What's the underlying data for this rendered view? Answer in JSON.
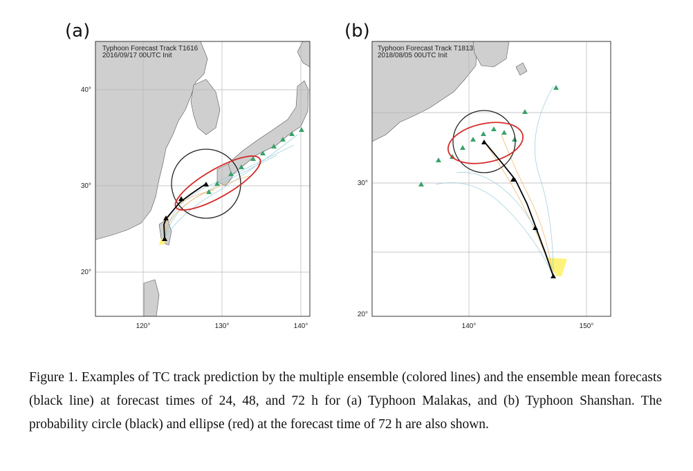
{
  "figure": {
    "panels": [
      {
        "label": "(a)",
        "title_line1": "Typhoon Forecast Track T1616",
        "title_line2": "2016/09/17 00UTC Init",
        "lon_ticks": [
          "120°",
          "130°",
          "140°"
        ],
        "lat_ticks": [
          "40°",
          "30°",
          "20°"
        ]
      },
      {
        "label": "(b)",
        "title_line1": "Typhoon Forecast Track T1813",
        "title_line2": "2018/08/05 00UTC Init",
        "lon_ticks": [
          "140°",
          "150°"
        ],
        "lat_ticks": [
          "30°",
          "20°"
        ]
      }
    ],
    "caption": "Figure 1. Examples of TC track prediction by the multiple ensemble (colored lines) and the ensemble mean forecasts (black line) at forecast times of 24, 48, and 72 h for (a) Typhoon Malakas, and (b) Typhoon Shanshan. The probability circle (black) and ellipse (red) at the forecast time of 72 h are also shown."
  },
  "colors": {
    "land": "#cfcfcf",
    "ocean": "#ffffff",
    "mean_track": "#000000",
    "circle": "#222222",
    "ellipse": "#d62a2a",
    "ensemble_24h": "#f0a64a",
    "ensemble_48h": "#8cc6d6",
    "ensemble_72h": "#39a26a",
    "cone": "#fff27a"
  }
}
